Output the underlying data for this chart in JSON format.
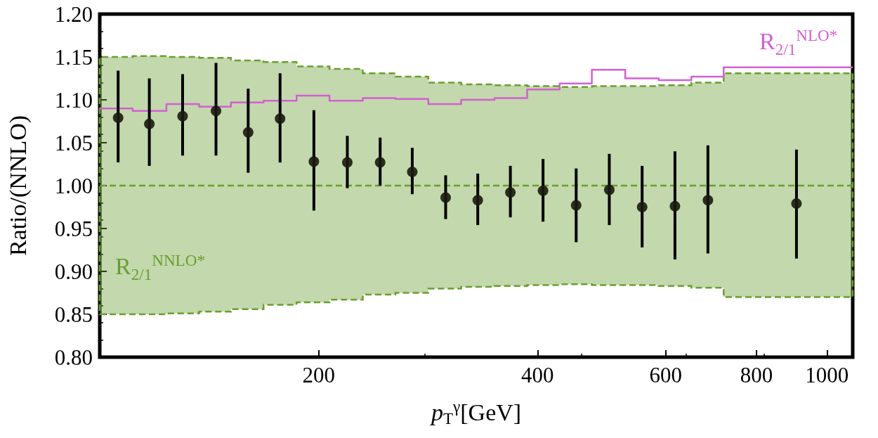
{
  "chart_data": {
    "type": "step",
    "xlabel": "p$_{T}$$^{γ}$[GeV]",
    "ylabel": "Ratio/(NNLO)",
    "log": "x",
    "xlim": [
      100,
      1085
    ],
    "xticks": [
      200,
      400,
      600,
      800,
      1000
    ],
    "ylim": [
      0.8,
      1.2
    ],
    "yticks": [
      {
        "value": 0.8,
        "label": "0.80"
      },
      {
        "value": 0.85,
        "label": "0.85"
      },
      {
        "value": 0.9,
        "label": "0.90"
      },
      {
        "value": 0.95,
        "label": "0.95"
      },
      {
        "value": 1.0,
        "label": "1.00"
      },
      {
        "value": 1.05,
        "label": "1.05"
      },
      {
        "value": 1.1,
        "label": "1.10"
      },
      {
        "value": 1.15,
        "label": "1.15"
      },
      {
        "value": 1.2,
        "label": "1.20"
      }
    ],
    "series": [
      {
        "name": "R$_{2/1}$$^{NNLO*}$",
        "color": "#6a9e2f",
        "line_style": "dashed",
        "x": [
          100,
          111,
          123.5,
          137,
          151.5,
          168,
          186.5,
          207,
          230,
          255,
          283,
          314,
          349,
          387,
          429,
          475,
          528,
          587,
          651,
          721,
          1085
        ],
        "values": [
          1.0,
          1.0,
          1.0,
          1.0,
          1.0,
          1.0,
          1.0,
          1.0,
          1.0,
          1.0,
          1.0,
          1.0,
          1.0,
          1.0,
          1.0,
          1.0,
          1.0,
          1.0,
          1.0,
          1.0,
          1.0
        ],
        "lower": [
          0.85,
          0.85,
          0.851,
          0.853,
          0.856,
          0.861,
          0.864,
          0.867,
          0.873,
          0.875,
          0.88,
          0.882,
          0.883,
          0.884,
          0.885,
          0.884,
          0.884,
          0.883,
          0.881,
          0.87,
          0.87
        ],
        "upper": [
          1.15,
          1.151,
          1.15,
          1.149,
          1.146,
          1.144,
          1.139,
          1.136,
          1.131,
          1.127,
          1.12,
          1.118,
          1.117,
          1.116,
          1.115,
          1.116,
          1.116,
          1.117,
          1.12,
          1.131,
          1.131
        ]
      },
      {
        "name": "R$_{2/1}$$^{NLO*}$",
        "color": "#d35fd3",
        "line_style": "solid",
        "x": [
          100,
          111,
          123.5,
          137,
          151.5,
          168,
          186.5,
          207,
          230,
          255,
          283,
          314,
          349,
          387,
          429,
          475,
          528,
          587,
          651,
          721,
          1085
        ],
        "values": [
          1.09,
          1.087,
          1.095,
          1.092,
          1.097,
          1.099,
          1.105,
          1.099,
          1.102,
          1.101,
          1.095,
          1.1,
          1.102,
          1.112,
          1.119,
          1.135,
          1.125,
          1.123,
          1.127,
          1.138,
          1.138
        ]
      },
      {
        "type": "scatter",
        "color": "#1a1a10",
        "marker": "circle",
        "x": [
          106,
          117,
          130,
          144.5,
          160,
          177,
          197,
          219,
          243,
          269,
          299,
          331,
          367,
          407,
          452,
          502,
          557,
          618,
          686,
          908
        ],
        "values": [
          1.079,
          1.072,
          1.081,
          1.087,
          1.062,
          1.078,
          1.028,
          1.027,
          1.027,
          1.016,
          0.986,
          0.983,
          0.992,
          0.994,
          0.977,
          0.995,
          0.975,
          0.976,
          0.983,
          0.979
        ],
        "errors": [
          [
            1.027,
            1.134
          ],
          [
            1.023,
            1.125
          ],
          [
            1.035,
            1.13
          ],
          [
            1.035,
            1.143
          ],
          [
            1.015,
            1.113
          ],
          [
            1.027,
            1.131
          ],
          [
            0.971,
            1.088
          ],
          [
            0.997,
            1.058
          ],
          [
            1.0,
            1.056
          ],
          [
            0.99,
            1.044
          ],
          [
            0.961,
            1.012
          ],
          [
            0.954,
            1.014
          ],
          [
            0.963,
            1.023
          ],
          [
            0.958,
            1.031
          ],
          [
            0.934,
            1.02
          ],
          [
            0.954,
            1.037
          ],
          [
            0.928,
            1.023
          ],
          [
            0.914,
            1.04
          ],
          [
            0.921,
            1.047
          ],
          [
            0.915,
            1.042
          ]
        ]
      }
    ]
  }
}
